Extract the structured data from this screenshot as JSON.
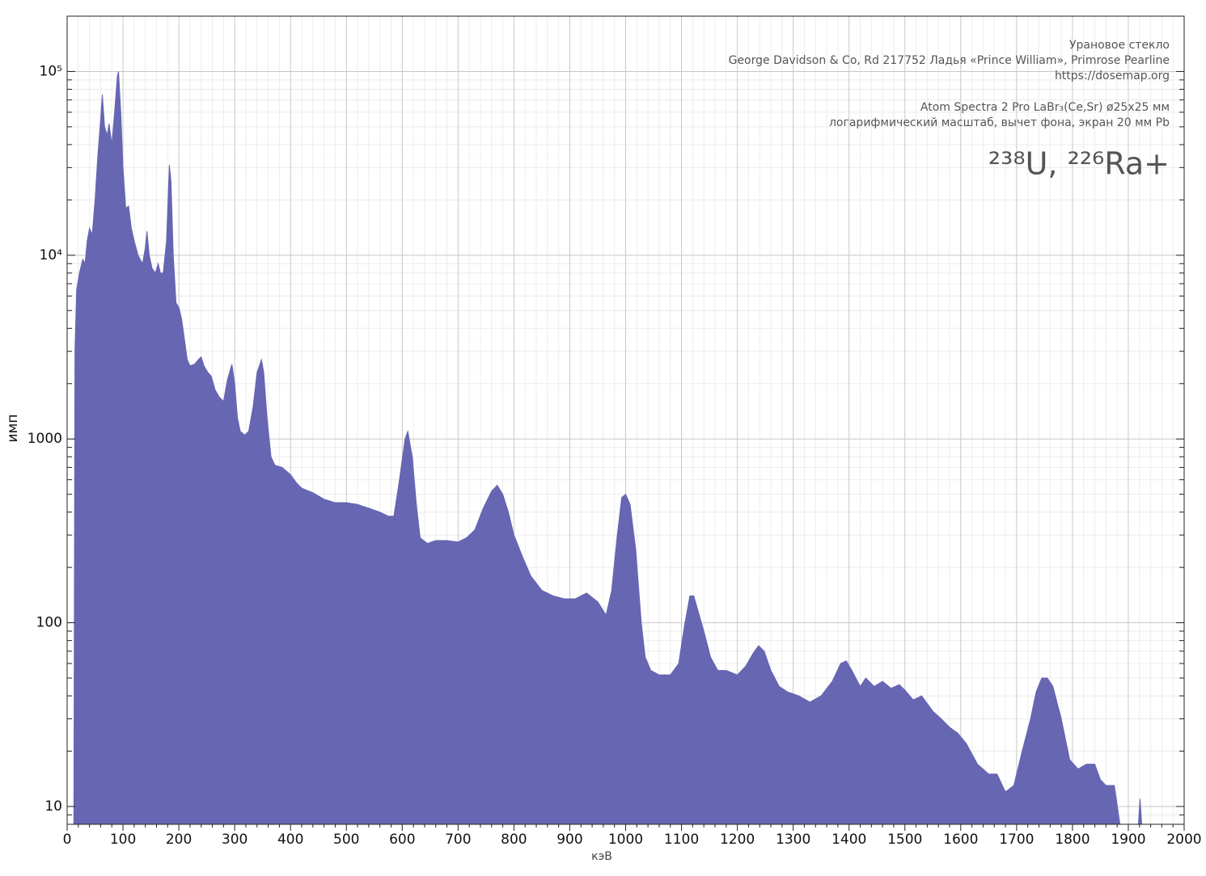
{
  "chart_data": {
    "type": "area",
    "title_lines": [
      "Урановое стекло",
      "George Davidson & Co, Rd 217752 Ладья «Prince William», Primrose Pearline",
      "https://dosemap.org",
      "Atom Spectra 2 Pro LaBr₃(Ce,Sr) ø25x25 мм",
      "логарифмический масштаб, вычет фона, экран 20 мм Pb"
    ],
    "isotopes": "²³⁸U, ²²⁶Ra+",
    "xlabel": "кэВ",
    "ylabel": "имп",
    "log_y": true,
    "grid": true,
    "color": "#6666b3",
    "xlim": [
      0,
      2000
    ],
    "ylim": [
      8,
      200000
    ],
    "xticks": [
      0,
      100,
      200,
      300,
      400,
      500,
      600,
      700,
      800,
      900,
      1000,
      1100,
      1200,
      1300,
      1400,
      1500,
      1600,
      1700,
      1800,
      1900,
      2000
    ],
    "xticks_minor": [
      20,
      40,
      60,
      80,
      120,
      140,
      160,
      180,
      220,
      240,
      260,
      280,
      320,
      340,
      360,
      380,
      420,
      440,
      460,
      480,
      520,
      540,
      560,
      580,
      620,
      640,
      660,
      680,
      720,
      740,
      760,
      780,
      820,
      840,
      860,
      880,
      920,
      940,
      960,
      980,
      1020,
      1040,
      1060,
      1080,
      1120,
      1140,
      1160,
      1180,
      1220,
      1240,
      1260,
      1280,
      1320,
      1340,
      1360,
      1380,
      1420,
      1440,
      1460,
      1480,
      1520,
      1540,
      1560,
      1580,
      1620,
      1640,
      1660,
      1680,
      1720,
      1740,
      1760,
      1780,
      1820,
      1840,
      1860,
      1880,
      1920,
      1940,
      1960,
      1980
    ],
    "yticks": [
      10,
      100,
      1000,
      {
        "value": 10000,
        "label": "10⁴"
      },
      {
        "value": 100000,
        "label": "10⁵"
      }
    ],
    "yticks_minor": [
      9,
      20,
      30,
      40,
      50,
      60,
      70,
      80,
      90,
      200,
      300,
      400,
      500,
      600,
      700,
      800,
      900,
      2000,
      3000,
      4000,
      5000,
      6000,
      7000,
      8000,
      9000,
      20000,
      30000,
      40000,
      50000,
      60000,
      70000,
      80000,
      90000
    ],
    "x": [
      12,
      14,
      17,
      22,
      28,
      32,
      36,
      40,
      45,
      50,
      55,
      60,
      63,
      67,
      72,
      75,
      80,
      85,
      90,
      92,
      96,
      100,
      105,
      110,
      115,
      120,
      127,
      135,
      140,
      143,
      147,
      152,
      158,
      163,
      167,
      172,
      178,
      183,
      186,
      190,
      195,
      200,
      205,
      210,
      215,
      220,
      228,
      235,
      240,
      245,
      252,
      258,
      265,
      272,
      280,
      287,
      295,
      300,
      305,
      310,
      318,
      325,
      333,
      340,
      348,
      352,
      358,
      365,
      372,
      385,
      400,
      410,
      420,
      440,
      460,
      480,
      500,
      520,
      540,
      560,
      575,
      585,
      595,
      605,
      610,
      618,
      625,
      632,
      645,
      660,
      680,
      700,
      715,
      730,
      745,
      760,
      770,
      780,
      790,
      800,
      815,
      830,
      850,
      870,
      890,
      910,
      930,
      950,
      965,
      975,
      985,
      993,
      1000,
      1008,
      1018,
      1028,
      1035,
      1045,
      1060,
      1080,
      1095,
      1105,
      1115,
      1122,
      1130,
      1140,
      1152,
      1165,
      1180,
      1200,
      1215,
      1228,
      1238,
      1248,
      1260,
      1275,
      1290,
      1310,
      1330,
      1350,
      1370,
      1385,
      1395,
      1405,
      1420,
      1430,
      1445,
      1460,
      1475,
      1490,
      1500,
      1515,
      1530,
      1550,
      1565,
      1580,
      1595,
      1610,
      1630,
      1650,
      1665,
      1680,
      1695,
      1710,
      1725,
      1735,
      1745,
      1755,
      1765,
      1780,
      1795,
      1810,
      1825,
      1840,
      1850,
      1860,
      1875,
      1885,
      1900,
      1918,
      1921,
      1924
    ],
    "values": [
      8,
      3000,
      6500,
      8000,
      9500,
      9000,
      12000,
      14000,
      13000,
      20000,
      35000,
      55000,
      75000,
      50000,
      45000,
      52000,
      40000,
      60000,
      95000,
      100000,
      60000,
      30000,
      18000,
      18500,
      14000,
      12000,
      10000,
      9000,
      11000,
      13500,
      10000,
      8500,
      8000,
      9000,
      8000,
      8000,
      12000,
      31000,
      25000,
      10000,
      5500,
      5200,
      4500,
      3500,
      2700,
      2500,
      2550,
      2700,
      2800,
      2500,
      2300,
      2200,
      1850,
      1700,
      1600,
      2100,
      2550,
      2000,
      1300,
      1100,
      1050,
      1100,
      1500,
      2300,
      2700,
      2300,
      1300,
      800,
      720,
      700,
      640,
      580,
      540,
      510,
      470,
      450,
      450,
      440,
      420,
      400,
      380,
      380,
      600,
      1000,
      1100,
      800,
      450,
      290,
      270,
      280,
      280,
      275,
      290,
      320,
      420,
      520,
      560,
      500,
      400,
      300,
      230,
      180,
      150,
      140,
      135,
      135,
      145,
      130,
      110,
      150,
      300,
      480,
      500,
      440,
      250,
      100,
      65,
      55,
      52,
      52,
      60,
      95,
      140,
      140,
      115,
      90,
      65,
      55,
      55,
      52,
      58,
      68,
      75,
      70,
      55,
      45,
      42,
      40,
      37,
      40,
      48,
      60,
      62,
      55,
      45,
      50,
      45,
      48,
      44,
      46,
      43,
      38,
      40,
      33,
      30,
      27,
      25,
      22,
      17,
      15,
      15,
      12,
      13,
      20,
      30,
      42,
      50,
      50,
      45,
      30,
      18,
      16,
      17,
      17,
      14,
      13,
      13,
      8,
      null,
      8,
      11,
      8
    ]
  }
}
